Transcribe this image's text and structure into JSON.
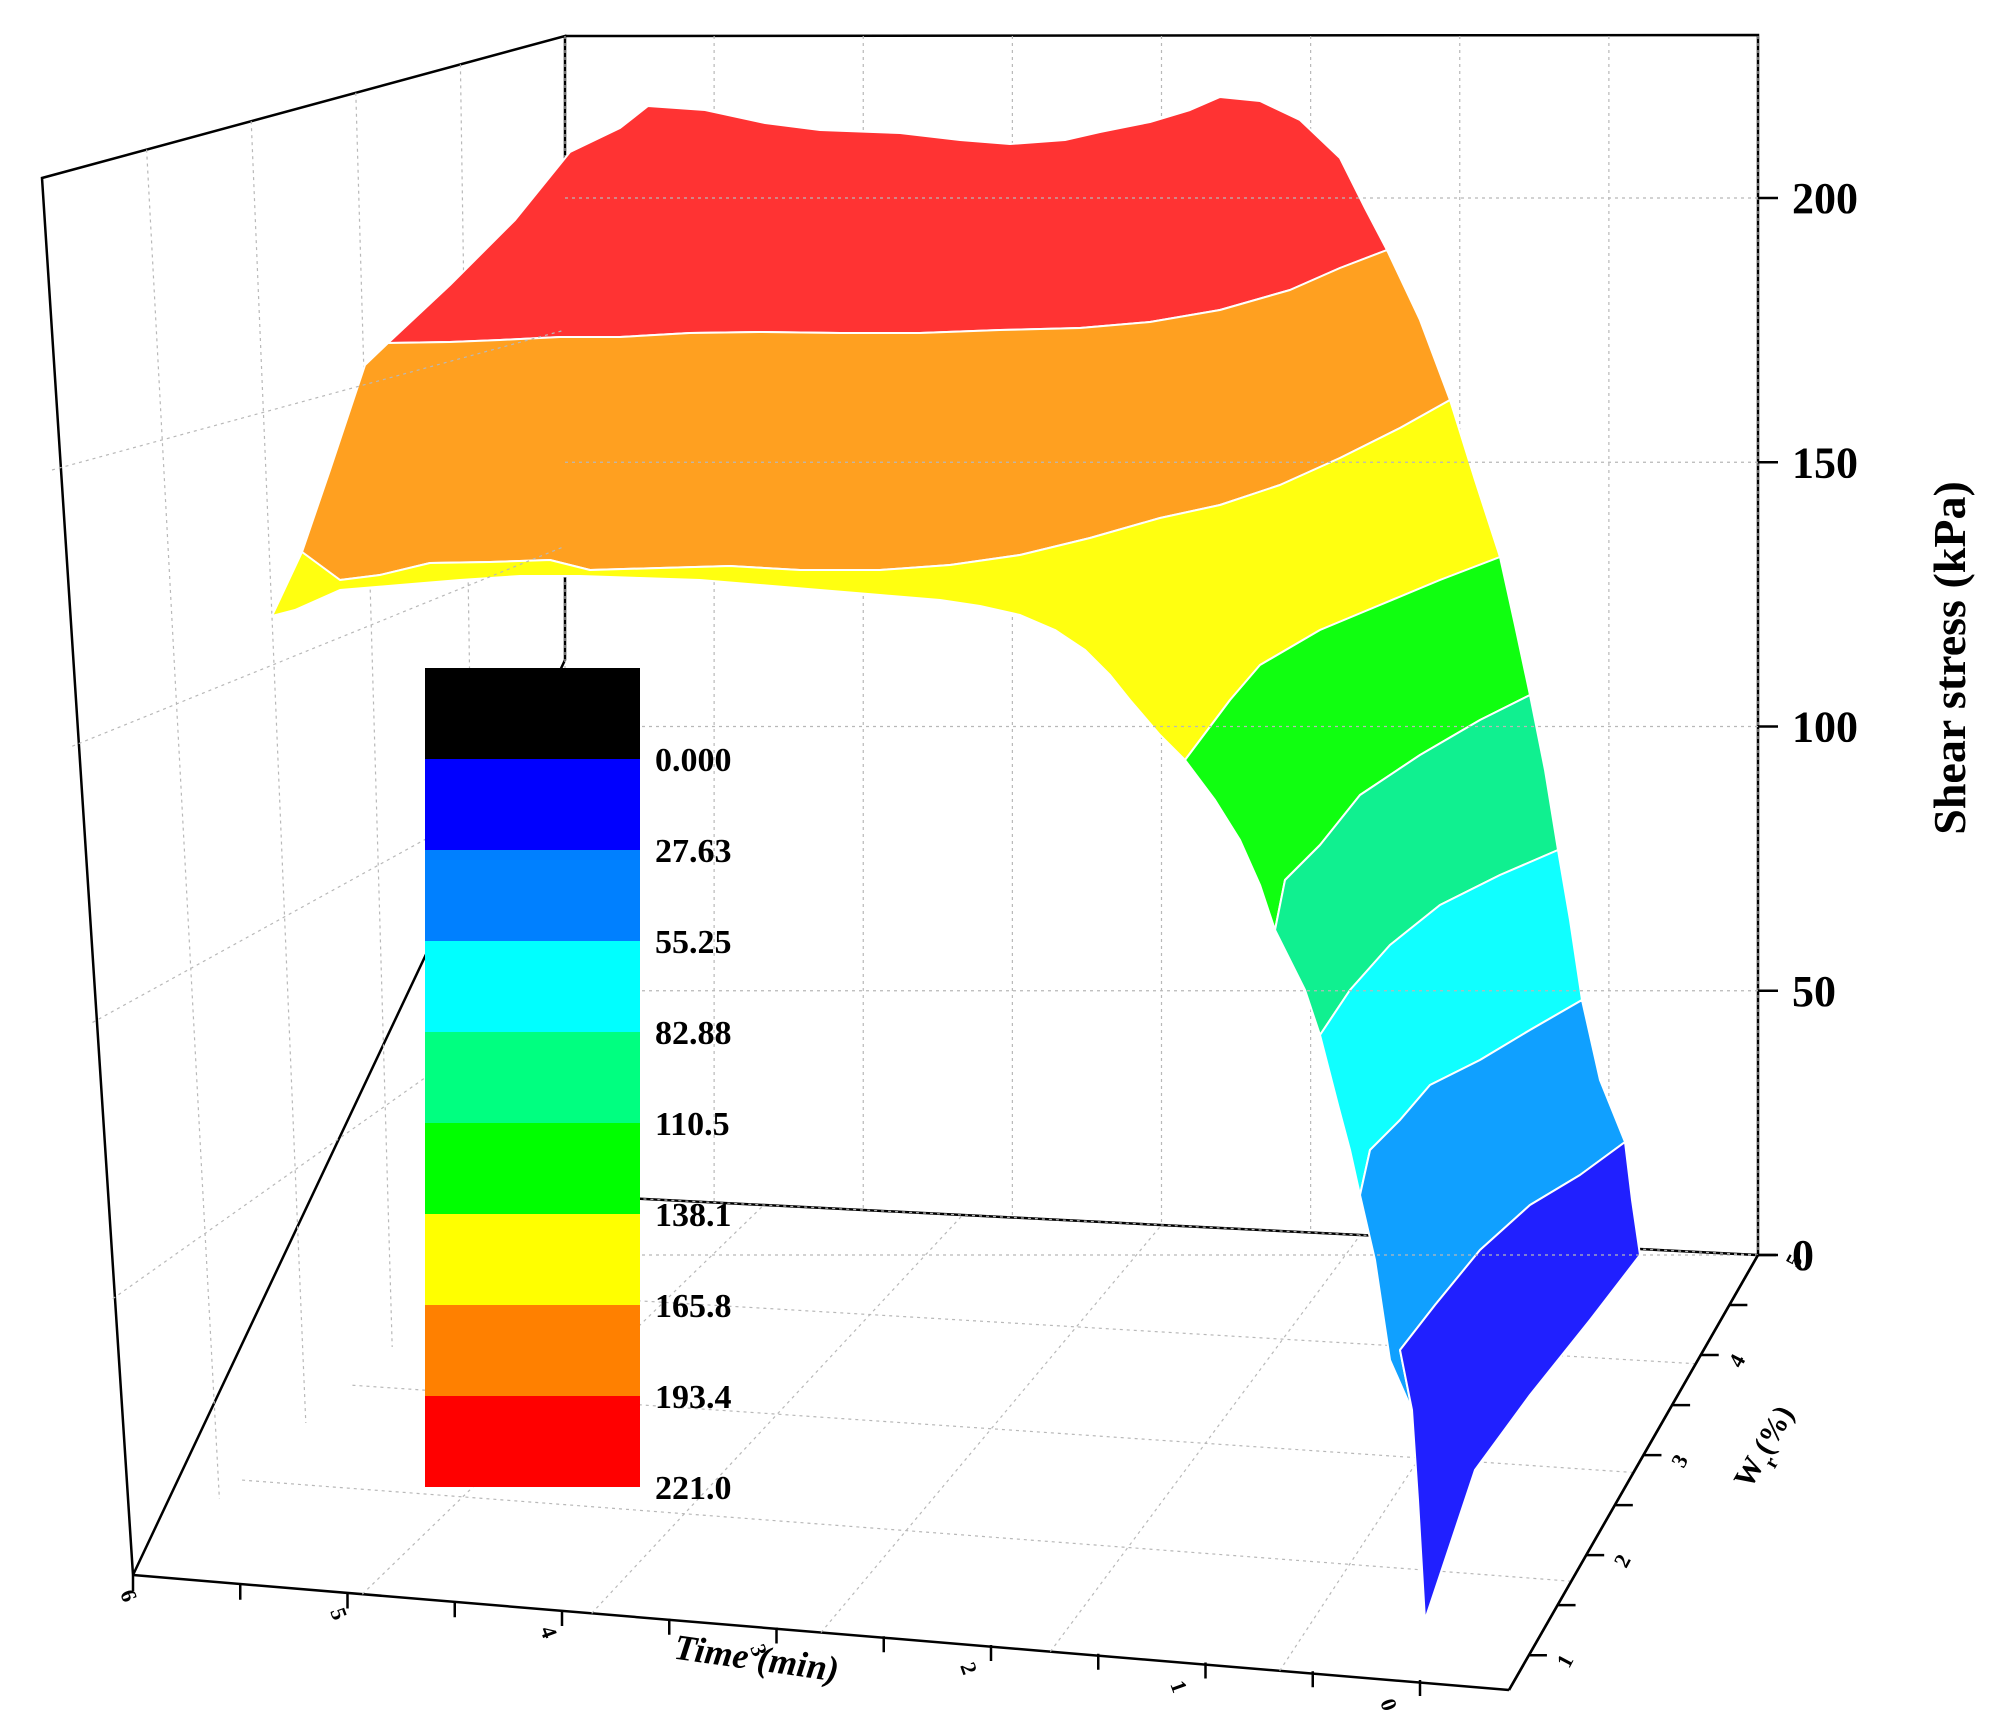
{
  "chart_data": {
    "type": "surface3d",
    "zlabel": "Shear stress (kPa)",
    "xlabel": "Time (min)",
    "ylabel": "W",
    "ylabel_sub": "r",
    "ylabel_unit": "(%)",
    "zlim": [
      0,
      200
    ],
    "z_ticks": [
      "0",
      "50",
      "100",
      "150",
      "200"
    ],
    "time_ticks": [
      "0",
      "1",
      "2",
      "3",
      "4",
      "5",
      "6"
    ],
    "wr_ticks": [
      "1",
      "2",
      "3",
      "4",
      "5"
    ],
    "grid": true,
    "legend_placement": "center-left",
    "contour_levels": [
      "0.000",
      "27.63",
      "55.25",
      "82.88",
      "110.5",
      "138.1",
      "165.8",
      "193.4",
      "221.0"
    ],
    "contour_colors": [
      "#000000",
      "#0000ff",
      "#0080ff",
      "#00ffff",
      "#00ff80",
      "#00ff00",
      "#ffff00",
      "#ff8000",
      "#ff0000"
    ],
    "surface_colors": {
      "red": "#ff3333",
      "orange": "#ffa020",
      "yellow": "#ffff10",
      "green": "#10ff10",
      "teal": "#10f090",
      "cyan": "#10ffff",
      "lightblue": "#10a0ff",
      "blue": "#2020ff"
    },
    "shear_stress_profile": {
      "time_min": [
        0,
        0.5,
        1,
        1.5,
        2,
        2.5,
        3,
        3.5,
        4,
        4.5,
        5,
        5.5,
        6
      ],
      "stress_kPa": [
        0,
        115,
        185,
        205,
        212,
        210,
        210,
        213,
        216,
        217,
        214,
        205,
        190
      ]
    }
  }
}
